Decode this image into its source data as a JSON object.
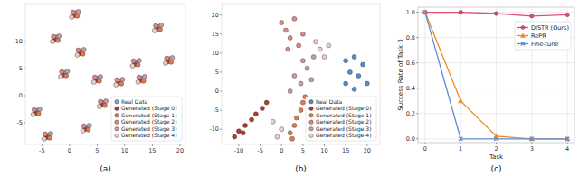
{
  "chart_data": [
    {
      "type": "scatter",
      "caption": "(a)",
      "legend": "lower right",
      "grid": false,
      "xlim": [
        -8,
        21
      ],
      "ylim": [
        -9,
        17
      ],
      "xticks": [
        -5,
        0,
        5,
        10,
        15,
        20
      ],
      "yticks": [
        -5,
        0,
        5,
        10
      ],
      "series": [
        {
          "name": "Real Data",
          "color": "#6fa8dc",
          "marker": "circle",
          "x": [
            1.2,
            -2.3,
            16.2,
            18.1,
            12.2,
            5.2,
            9.1,
            13.1,
            -5.8,
            -3.8,
            3.2,
            6.1,
            -0.8,
            2.1
          ],
          "values": [
            15.3,
            10.8,
            12.7,
            6.8,
            6.1,
            3.2,
            2.6,
            3.2,
            -2.8,
            -7.3,
            -5.8,
            -1.3,
            4.2,
            8.2
          ]
        },
        {
          "name": "Generated (Stage 0)",
          "color": "#b03a2e",
          "marker": "circle",
          "x": [
            0.8,
            -2.7,
            15.8,
            17.8,
            11.8,
            4.8,
            8.8,
            12.8,
            -6.2,
            -4.2,
            2.8,
            5.8,
            -1.2,
            1.8
          ],
          "values": [
            14.8,
            10.3,
            12.3,
            6.3,
            5.8,
            2.8,
            2.3,
            2.8,
            -3.2,
            -7.7,
            -6.2,
            -1.7,
            3.8,
            7.8
          ]
        },
        {
          "name": "Generated (Stage 1)",
          "color": "#e07b4f",
          "marker": "circle",
          "x": [
            1.4,
            -2.1,
            16.4,
            18.4,
            12.4,
            5.4,
            9.4,
            13.4,
            -5.6,
            -3.6,
            3.4,
            6.4,
            -0.6,
            2.4
          ],
          "values": [
            14.7,
            10.2,
            12.2,
            6.2,
            5.7,
            2.7,
            2.2,
            2.7,
            -3.3,
            -7.8,
            -6.3,
            -1.8,
            3.7,
            7.7
          ]
        },
        {
          "name": "Generated (Stage 2)",
          "color": "#d98a8a",
          "marker": "circle",
          "x": [
            0.6,
            -2.9,
            15.6,
            17.6,
            11.6,
            4.6,
            8.6,
            12.6,
            -6.4,
            -4.4,
            2.6,
            5.6,
            -1.4,
            1.6
          ],
          "values": [
            15.4,
            10.9,
            12.9,
            6.9,
            6.4,
            3.4,
            2.9,
            3.4,
            -2.6,
            -7.1,
            -5.6,
            -1.1,
            4.4,
            8.4
          ]
        },
        {
          "name": "Generated (Stage 3)",
          "color": "#c4a09c",
          "marker": "circle",
          "x": [
            1.6,
            -1.9,
            16.6,
            18.6,
            12.6,
            5.6,
            9.6,
            13.6,
            -5.4,
            -3.4,
            3.6,
            6.6,
            -0.4,
            2.6
          ],
          "values": [
            15.5,
            11,
            13,
            7,
            6.5,
            3.5,
            3,
            3.5,
            -2.5,
            -7,
            -5.5,
            -1,
            4.5,
            8.5
          ]
        },
        {
          "name": "Generated (Stage 4)",
          "color": "#e8cfcf",
          "marker": "circle",
          "x": [
            0.4,
            -3.1,
            15.4,
            17.4,
            11.4,
            4.4,
            8.4,
            12.4,
            -6.6,
            -4.6,
            2.4,
            5.4,
            -1.6,
            1.4
          ],
          "values": [
            14.5,
            10,
            12,
            6,
            5.5,
            2.5,
            2,
            2.5,
            -3.5,
            -8,
            -6.5,
            -2,
            3.5,
            7.5
          ]
        }
      ]
    },
    {
      "type": "scatter",
      "caption": "(b)",
      "legend": "lower right",
      "grid": false,
      "xlim": [
        -14,
        23
      ],
      "ylim": [
        -14,
        23
      ],
      "xticks": [
        -10,
        -5,
        0,
        5,
        10,
        15,
        20
      ],
      "yticks": [
        -10,
        -5,
        0,
        5,
        10,
        15,
        20
      ],
      "series": [
        {
          "name": "Real Data",
          "color": "#4f8fd0",
          "marker": "circle",
          "x": [
            15,
            17,
            19,
            16,
            18,
            20,
            15,
            17
          ],
          "values": [
            8,
            9,
            7,
            5,
            4,
            2,
            2,
            0.5
          ]
        },
        {
          "name": "Generated (Stage 0)",
          "color": "#b03a2e",
          "marker": "circle",
          "x": [
            -11,
            -10,
            -8.5,
            -7,
            -6,
            -4.5,
            -3.5,
            -9
          ],
          "values": [
            -12,
            -10.5,
            -9,
            -7.5,
            -6,
            -4.5,
            -3,
            -11
          ]
        },
        {
          "name": "Generated (Stage 1)",
          "color": "#e07b4f",
          "marker": "circle",
          "x": [
            2,
            3,
            3.5,
            4.5,
            5,
            5.5,
            2.5
          ],
          "values": [
            -11,
            -9,
            -7,
            -5,
            -3,
            -1.5,
            -12.5
          ]
        },
        {
          "name": "Generated (Stage 2)",
          "color": "#d98a8a",
          "marker": "circle",
          "x": [
            0,
            1,
            2,
            3,
            4,
            1.5,
            5
          ],
          "values": [
            18,
            16,
            14,
            19,
            12,
            11,
            15
          ]
        },
        {
          "name": "Generated (Stage 3)",
          "color": "#c4a09c",
          "marker": "circle",
          "x": [
            3,
            4.5,
            6,
            5,
            7,
            2,
            7.5
          ],
          "values": [
            4,
            2,
            6,
            8,
            3,
            0,
            9
          ]
        },
        {
          "name": "Generated (Stage 4)",
          "color": "#e8cfcf",
          "marker": "circle",
          "x": [
            -1,
            0,
            -2,
            8,
            9,
            10,
            11
          ],
          "values": [
            -12,
            -10,
            -8,
            13,
            11,
            9,
            12
          ]
        }
      ]
    },
    {
      "type": "line",
      "caption": "(c)",
      "xlabel": "Task",
      "ylabel": "Success Rate of Task 0",
      "legend": "upper right",
      "grid": true,
      "x": [
        0,
        1,
        2,
        3,
        4
      ],
      "xlim": [
        -0.2,
        4.2
      ],
      "xticks": [
        0,
        1,
        2,
        3,
        4
      ],
      "ylim": [
        -0.03,
        1.04
      ],
      "yticks": [
        {
          "value": 0,
          "label": "0.0"
        },
        {
          "value": 0.2,
          "label": "0.2"
        },
        {
          "value": 0.4,
          "label": "0.4"
        },
        {
          "value": 0.6,
          "label": "0.6"
        },
        {
          "value": 0.8,
          "label": "0.8"
        },
        {
          "value": 1,
          "label": "1.0"
        }
      ],
      "series": [
        {
          "name": "DISTR (Ours)",
          "color": "#e05070",
          "marker": "circle",
          "line_style": "solid",
          "values": [
            1.0,
            1.0,
            0.99,
            0.97,
            0.98
          ]
        },
        {
          "name": "RePR",
          "color": "#f08a24",
          "marker": "triangle",
          "line_style": "solid",
          "values": [
            1.0,
            0.3,
            0.02,
            0.0,
            0.0
          ]
        },
        {
          "name": "Fine-tune",
          "color": "#5b8fd6",
          "marker": "x",
          "line_style": "solid",
          "values": [
            1.0,
            0.0,
            0.0,
            0.0,
            0.0
          ]
        }
      ]
    }
  ]
}
